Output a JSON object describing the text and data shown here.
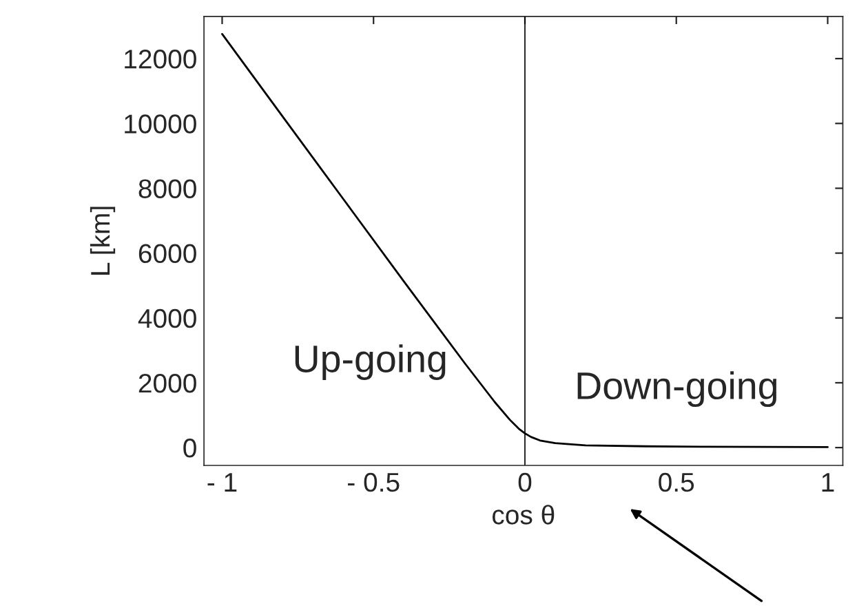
{
  "chart_data": {
    "type": "line",
    "xlabel": "cos θ",
    "ylabel": "L [km]",
    "x": [
      -1,
      -0.8,
      -0.6,
      -0.4,
      -0.2,
      -0.1,
      -0.05,
      -0.02,
      0,
      0.02,
      0.05,
      0.1,
      0.2,
      0.4,
      0.6,
      1
    ],
    "series": [
      {
        "color": "#000000",
        "values": [
          12760,
          10210,
          7670,
          5130,
          2620,
          1410,
          860,
          580,
          440,
          330,
          220,
          140,
          70,
          40,
          25,
          15
        ]
      }
    ],
    "xlim": [
      -1.06,
      1.05
    ],
    "ylim": [
      -550,
      13300
    ],
    "xticks": [
      {
        "value": -1,
        "label": "- 1"
      },
      {
        "value": -0.5,
        "label": "- 0.5"
      },
      0,
      0.5,
      1
    ],
    "yticks": [
      0,
      2000,
      4000,
      6000,
      8000,
      10000,
      12000
    ],
    "ref_lines": [
      {
        "axis": "x",
        "value": 0,
        "color": "#000000"
      }
    ],
    "annotations": [
      "Up-going",
      "Down-going"
    ],
    "grid": false,
    "legend": false,
    "marker": "none",
    "line_style": "solid"
  }
}
